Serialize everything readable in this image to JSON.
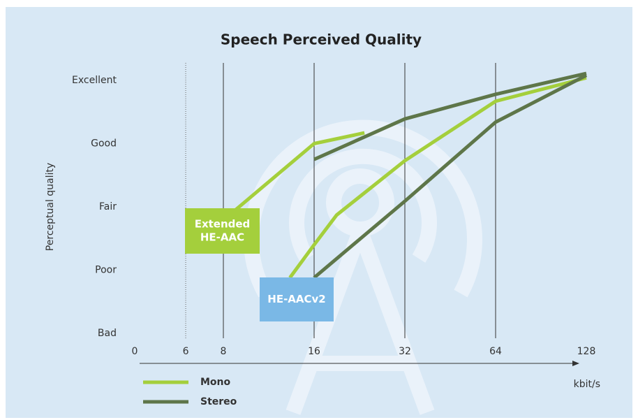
{
  "chart_data": {
    "type": "line",
    "title": "Speech Perceived Quality",
    "y_label": "Perceptual quality",
    "x_unit": "kbit/s",
    "x_origin_label": "0",
    "xscale": "log",
    "xlim": [
      4,
      128
    ],
    "xticks": [
      6,
      8,
      16,
      32,
      64,
      128
    ],
    "xgrid_dotted": [
      6
    ],
    "xgrid": [
      6,
      8,
      16,
      32,
      64
    ],
    "ylim": [
      1,
      5
    ],
    "yticks": [
      {
        "value": 1,
        "label": "Bad"
      },
      {
        "value": 2,
        "label": "Poor"
      },
      {
        "value": 3,
        "label": "Fair"
      },
      {
        "value": 4,
        "label": "Good"
      },
      {
        "value": 5,
        "label": "Excellent"
      }
    ],
    "series": [
      {
        "name": "Mono",
        "color": "#a4cf3c",
        "x": [
          8,
          16,
          23.5,
          null,
          13.3,
          16,
          19,
          32,
          64,
          128
        ],
        "values": [
          2.79,
          4.0,
          4.17,
          null,
          1.88,
          2.4,
          2.87,
          3.73,
          4.67,
          5.04
        ]
      },
      {
        "name": "Stereo",
        "color": "#5e7649",
        "x": [
          16,
          32,
          64,
          128,
          null,
          16,
          32,
          64,
          128
        ],
        "values": [
          3.75,
          4.39,
          4.78,
          5.11,
          null,
          1.88,
          3.09,
          4.34,
          5.08
        ]
      }
    ],
    "annotations": [
      {
        "lines": [
          "Extended",
          "HE-AAC"
        ],
        "color": "#a4cf3c"
      },
      {
        "lines": [
          "HE-AACv2"
        ],
        "color": "#7ab8e6"
      }
    ]
  }
}
